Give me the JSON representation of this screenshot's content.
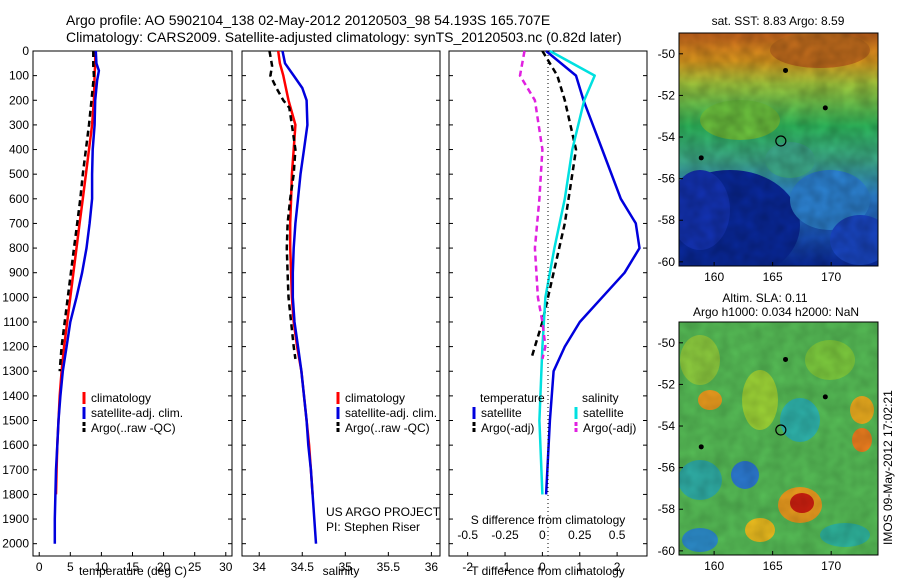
{
  "header": {
    "line1": "Argo profile: AO 5902104_138 02-May-2012 20120503_98 54.193S 165.707E",
    "line2": "Climatology: CARS2009. Satellite-adjusted climatology: synTS_20120503.nc (0.82d later)"
  },
  "legend_common": {
    "climatology": "climatology",
    "satellite": "satellite-adj. clim.",
    "argo": "Argo(..raw -QC)"
  },
  "legend_diff": {
    "temperature": "temperature",
    "salinity": "salinity",
    "satellite_t": "satellite",
    "argo_t": "Argo(-adj)",
    "satellite_s": "satellite",
    "argo_s": "Argo(-adj)"
  },
  "credits": {
    "project": "US ARGO PROJECT",
    "pi": "PI: Stephen Riser",
    "stamp": "IMOS 09-May-2012 17:02:21"
  },
  "colors": {
    "climatology": "#ff0000",
    "satellite": "#0000dd",
    "argo": "#000000",
    "satellite_s": "#00e0e0",
    "argo_s": "#e020e0"
  },
  "chart_data": [
    {
      "type": "line",
      "xlabel": "temperature (deg C)",
      "ylabel": "",
      "xlim": [
        -1,
        31
      ],
      "ylim": [
        2050,
        0
      ],
      "xticks": [
        0,
        5,
        10,
        15,
        20,
        25,
        30
      ],
      "yticks": [
        0,
        100,
        200,
        300,
        400,
        500,
        600,
        700,
        800,
        900,
        1000,
        1100,
        1200,
        1300,
        1400,
        1500,
        1600,
        1700,
        1800,
        1900,
        2000
      ],
      "series": [
        {
          "name": "climatology",
          "color": "#ff0000",
          "dash": "solid",
          "points": [
            [
              9.0,
              0
            ],
            [
              9.0,
              50
            ],
            [
              8.9,
              100
            ],
            [
              8.8,
              200
            ],
            [
              8.5,
              300
            ],
            [
              8.0,
              400
            ],
            [
              7.5,
              500
            ],
            [
              7.0,
              600
            ],
            [
              6.5,
              700
            ],
            [
              6.0,
              800
            ],
            [
              5.5,
              900
            ],
            [
              5.0,
              1000
            ],
            [
              4.5,
              1100
            ],
            [
              4.0,
              1200
            ],
            [
              3.6,
              1300
            ],
            [
              3.3,
              1400
            ],
            [
              3.1,
              1500
            ],
            [
              2.9,
              1600
            ],
            [
              2.8,
              1700
            ],
            [
              2.7,
              1800
            ]
          ]
        },
        {
          "name": "satellite-adj. clim.",
          "color": "#0000dd",
          "dash": "solid",
          "points": [
            [
              9.1,
              0
            ],
            [
              9.2,
              50
            ],
            [
              9.6,
              80
            ],
            [
              9.3,
              120
            ],
            [
              9.0,
              200
            ],
            [
              8.9,
              300
            ],
            [
              8.6,
              400
            ],
            [
              8.5,
              500
            ],
            [
              8.5,
              600
            ],
            [
              8.1,
              700
            ],
            [
              7.6,
              800
            ],
            [
              6.9,
              900
            ],
            [
              6.0,
              1000
            ],
            [
              5.0,
              1100
            ],
            [
              4.4,
              1200
            ],
            [
              3.8,
              1300
            ],
            [
              3.4,
              1400
            ],
            [
              3.1,
              1500
            ],
            [
              2.9,
              1600
            ],
            [
              2.7,
              1700
            ],
            [
              2.6,
              1800
            ],
            [
              2.5,
              1900
            ],
            [
              2.5,
              2000
            ]
          ]
        },
        {
          "name": "Argo(..raw -QC)",
          "color": "#000000",
          "dash": "6,4",
          "points": [
            [
              8.7,
              0
            ],
            [
              8.7,
              60
            ],
            [
              8.8,
              100
            ],
            [
              8.6,
              150
            ],
            [
              8.4,
              200
            ],
            [
              8.0,
              300
            ],
            [
              7.5,
              400
            ],
            [
              7.0,
              500
            ],
            [
              6.6,
              600
            ],
            [
              6.1,
              700
            ],
            [
              5.6,
              800
            ],
            [
              5.1,
              900
            ],
            [
              4.6,
              1000
            ],
            [
              4.1,
              1100
            ],
            [
              3.6,
              1200
            ],
            [
              3.3,
              1300
            ]
          ]
        }
      ]
    },
    {
      "type": "line",
      "xlabel": "salinity",
      "ylabel": "",
      "xlim": [
        33.8,
        36.1
      ],
      "ylim": [
        2050,
        0
      ],
      "xticks": [
        34,
        34.5,
        35,
        35.5,
        36
      ],
      "series": [
        {
          "name": "climatology",
          "color": "#ff0000",
          "dash": "solid",
          "points": [
            [
              34.22,
              0
            ],
            [
              34.24,
              50
            ],
            [
              34.28,
              100
            ],
            [
              34.34,
              200
            ],
            [
              34.42,
              300
            ],
            [
              34.4,
              400
            ],
            [
              34.38,
              500
            ],
            [
              34.37,
              600
            ],
            [
              34.36,
              700
            ],
            [
              34.36,
              800
            ],
            [
              34.37,
              900
            ],
            [
              34.38,
              1000
            ],
            [
              34.4,
              1100
            ],
            [
              34.44,
              1200
            ],
            [
              34.49,
              1300
            ],
            [
              34.52,
              1400
            ],
            [
              34.55,
              1500
            ],
            [
              34.58,
              1600
            ],
            [
              34.6,
              1700
            ],
            [
              34.62,
              1800
            ]
          ]
        },
        {
          "name": "satellite-adj. clim.",
          "color": "#0000dd",
          "dash": "solid",
          "points": [
            [
              34.27,
              0
            ],
            [
              34.3,
              50
            ],
            [
              34.4,
              100
            ],
            [
              34.5,
              150
            ],
            [
              34.55,
              200
            ],
            [
              34.56,
              300
            ],
            [
              34.52,
              400
            ],
            [
              34.48,
              500
            ],
            [
              34.45,
              600
            ],
            [
              34.42,
              700
            ],
            [
              34.4,
              800
            ],
            [
              34.39,
              900
            ],
            [
              34.39,
              1000
            ],
            [
              34.41,
              1100
            ],
            [
              34.45,
              1200
            ],
            [
              34.49,
              1300
            ],
            [
              34.52,
              1400
            ],
            [
              34.55,
              1500
            ],
            [
              34.57,
              1600
            ],
            [
              34.6,
              1700
            ],
            [
              34.62,
              1800
            ],
            [
              34.64,
              1900
            ],
            [
              34.66,
              2000
            ]
          ]
        },
        {
          "name": "Argo(..raw -QC)",
          "color": "#000000",
          "dash": "6,4",
          "points": [
            [
              34.12,
              0
            ],
            [
              34.15,
              60
            ],
            [
              34.13,
              100
            ],
            [
              34.2,
              150
            ],
            [
              34.28,
              200
            ],
            [
              34.35,
              230
            ],
            [
              34.38,
              300
            ],
            [
              34.42,
              400
            ],
            [
              34.4,
              500
            ],
            [
              34.36,
              600
            ],
            [
              34.33,
              700
            ],
            [
              34.32,
              800
            ],
            [
              34.33,
              900
            ],
            [
              34.34,
              1000
            ],
            [
              34.37,
              1100
            ],
            [
              34.4,
              1200
            ],
            [
              34.42,
              1250
            ]
          ]
        }
      ]
    },
    {
      "type": "line",
      "xlabel": "T difference from climatology",
      "x2label": "S difference from climatology",
      "xlim": [
        -2.5,
        2.8
      ],
      "x2lim": [
        -0.625,
        0.7
      ],
      "ylim": [
        2050,
        0
      ],
      "xticks": [
        -2,
        -1,
        0,
        1,
        2
      ],
      "x2ticks": [
        -0.5,
        -0.25,
        0,
        0.25,
        0.5
      ],
      "series": [
        {
          "name": "temperature satellite",
          "color": "#0000dd",
          "dash": "solid",
          "points": [
            [
              0.1,
              0
            ],
            [
              0.9,
              100
            ],
            [
              1.1,
              200
            ],
            [
              1.6,
              400
            ],
            [
              2.1,
              600
            ],
            [
              2.5,
              700
            ],
            [
              2.6,
              800
            ],
            [
              2.2,
              900
            ],
            [
              1.6,
              1000
            ],
            [
              1.0,
              1100
            ],
            [
              0.6,
              1200
            ],
            [
              0.3,
              1300
            ],
            [
              0.2,
              1500
            ],
            [
              0.1,
              1800
            ]
          ]
        },
        {
          "name": "temperature Argo(-adj)",
          "color": "#000000",
          "dash": "6,4",
          "points": [
            [
              0.0,
              0
            ],
            [
              0.4,
              100
            ],
            [
              0.6,
              200
            ],
            [
              0.9,
              400
            ],
            [
              0.8,
              500
            ],
            [
              0.6,
              700
            ],
            [
              0.3,
              900
            ],
            [
              0.0,
              1100
            ],
            [
              -0.2,
              1200
            ],
            [
              -0.3,
              1250
            ]
          ]
        },
        {
          "name": "salinity satellite",
          "color": "#00e0e0",
          "dash": "solid",
          "points": [
            [
              0.05,
              0
            ],
            [
              0.35,
              100
            ],
            [
              0.28,
              200
            ],
            [
              0.2,
              400
            ],
            [
              0.15,
              600
            ],
            [
              0.08,
              800
            ],
            [
              0.02,
              1000
            ],
            [
              0.0,
              1200
            ],
            [
              -0.02,
              1500
            ],
            [
              0.0,
              1800
            ]
          ]
        },
        {
          "name": "salinity Argo(-adj)",
          "color": "#e020e0",
          "dash": "6,4",
          "points": [
            [
              -0.12,
              0
            ],
            [
              -0.15,
              100
            ],
            [
              -0.05,
              200
            ],
            [
              0.0,
              400
            ],
            [
              -0.02,
              600
            ],
            [
              -0.05,
              800
            ],
            [
              -0.03,
              1000
            ],
            [
              0.0,
              1100
            ],
            [
              0.02,
              1200
            ],
            [
              0.0,
              1250
            ]
          ]
        }
      ]
    },
    {
      "type": "heatmap",
      "title": "sat. SST: 8.83 Argo: 8.59",
      "xlim": [
        157,
        174
      ],
      "ylim": [
        -60.2,
        -49
      ],
      "xticks": [
        160,
        165,
        170
      ],
      "yticks": [
        -50,
        -52,
        -54,
        -56,
        -58,
        -60
      ],
      "argo_position": [
        165.7,
        -54.19
      ],
      "float_tracks": [
        [
          166.1,
          -50.8
        ],
        [
          169.5,
          -52.6
        ],
        [
          158.9,
          -55.0
        ]
      ]
    },
    {
      "type": "heatmap",
      "title": "Altim. SLA: 0.11",
      "subtitle": "Argo h1000: 0.034 h2000: NaN",
      "xlim": [
        157,
        174
      ],
      "ylim": [
        -60.2,
        -49
      ],
      "xticks": [
        160,
        165,
        170
      ],
      "yticks": [
        -50,
        -52,
        -54,
        -56,
        -58,
        -60
      ],
      "argo_position": [
        165.7,
        -54.19
      ],
      "float_tracks": [
        [
          166.1,
          -50.8
        ],
        [
          169.5,
          -52.6
        ],
        [
          158.9,
          -55.0
        ]
      ]
    }
  ]
}
